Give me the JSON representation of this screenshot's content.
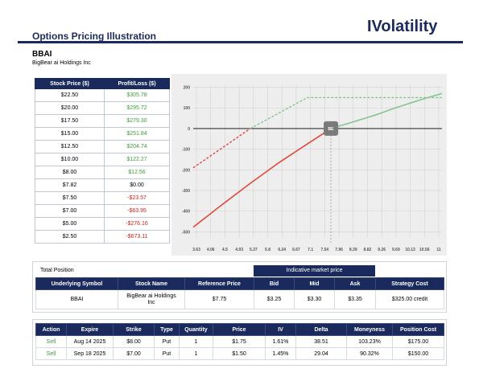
{
  "header": {
    "title": "Options Pricing Illustration",
    "brand": "IVolatility"
  },
  "stock": {
    "ticker": "BBAI",
    "company": "BigBear ai Holdings Inc"
  },
  "pl_table": {
    "headers": [
      "Stock Price ($)",
      "Profit/Loss ($)"
    ],
    "rows": [
      {
        "price": "$22.50",
        "pl": "$305.78",
        "sign": "pos"
      },
      {
        "price": "$20.00",
        "pl": "$295.72",
        "sign": "pos"
      },
      {
        "price": "$17.50",
        "pl": "$279.30",
        "sign": "pos"
      },
      {
        "price": "$15.00",
        "pl": "$251.84",
        "sign": "pos"
      },
      {
        "price": "$12.50",
        "pl": "$204.74",
        "sign": "pos"
      },
      {
        "price": "$10.00",
        "pl": "$122.27",
        "sign": "pos"
      },
      {
        "price": "$8.00",
        "pl": "$12.56",
        "sign": "pos"
      },
      {
        "price": "$7.82",
        "pl": "$0.00",
        "sign": "zero"
      },
      {
        "price": "$7.50",
        "pl": "-$23.57",
        "sign": "neg"
      },
      {
        "price": "$7.00",
        "pl": "-$63.95",
        "sign": "neg"
      },
      {
        "price": "$5.00",
        "pl": "-$276.16",
        "sign": "neg"
      },
      {
        "price": "$2.50",
        "pl": "-$673.11",
        "sign": "neg"
      }
    ]
  },
  "chart_data": {
    "type": "line",
    "x_ticks": [
      "3.63",
      "4.06",
      "4.5",
      "4.93",
      "5.37",
      "5.8",
      "6.24",
      "6.67",
      "7.1",
      "7.54",
      "7.96",
      "8.39",
      "8.82",
      "9.26",
      "9.69",
      "10.13",
      "10.56",
      "11"
    ],
    "y_ticks": [
      200,
      100,
      0,
      -100,
      -200,
      -300,
      -400,
      -500
    ],
    "ylim": [
      -530,
      210
    ],
    "xlim": [
      3.63,
      11.2
    ],
    "breakeven_x": 7.82,
    "breakeven_marker_label": "BE",
    "reference_price_x": 7.75,
    "series": [
      {
        "style": "solid",
        "points": [
          [
            3.63,
            -478
          ],
          [
            4.5,
            -370
          ],
          [
            5.37,
            -265
          ],
          [
            6.24,
            -165
          ],
          [
            7.1,
            -75
          ],
          [
            7.82,
            0
          ]
        ]
      },
      {
        "style": "solid",
        "points": [
          [
            7.82,
            0
          ],
          [
            8.39,
            27
          ],
          [
            8.82,
            48
          ],
          [
            9.26,
            70
          ],
          [
            9.69,
            95
          ],
          [
            10.13,
            118
          ],
          [
            10.56,
            140
          ],
          [
            11.2,
            170
          ]
        ]
      },
      {
        "style": "dashed",
        "points": [
          [
            3.63,
            -190
          ],
          [
            5.37,
            0
          ]
        ]
      },
      {
        "style": "dashed",
        "points": [
          [
            5.37,
            0
          ],
          [
            7.1,
            150
          ],
          [
            11.2,
            150
          ]
        ]
      }
    ],
    "colors": {
      "loss": "#e0493b",
      "profit": "#86c48e",
      "grid": "#d2d2d2",
      "marker": "#7a7a7a",
      "zero_line": "#000000"
    }
  },
  "total_position": {
    "label": "Total Position",
    "imp_header": "Indicative market price",
    "headers": [
      "Underlying Symbol",
      "Stock Name",
      "Reference Price",
      "Bid",
      "Mid",
      "Ask",
      "Strategy Cost"
    ],
    "row": {
      "symbol": "BBAI",
      "name_line1": "BigBear ai Holdings",
      "name_line2": "Inc",
      "ref_price": "$7.75",
      "bid": "$3.25",
      "mid": "$3.30",
      "ask": "$3.35",
      "cost": "$325.00 credit"
    }
  },
  "trades": {
    "headers": [
      "Action",
      "Expire",
      "Strike",
      "Type",
      "Quantity",
      "Price",
      "IV",
      "Delta",
      "Moneyness",
      "Position Cost"
    ],
    "rows": [
      {
        "action": "Sell",
        "expire": "Aug 14 2025",
        "strike": "$8.00",
        "type": "Put",
        "qty": "1",
        "price": "$1.75",
        "iv": "1.61%",
        "delta": "38.51",
        "moneyness": "103.23%",
        "cost": "$175.00"
      },
      {
        "action": "Sell",
        "expire": "Sep 18 2025",
        "strike": "$7.00",
        "type": "Put",
        "qty": "1",
        "price": "$1.50",
        "iv": "1.45%",
        "delta": "29.04",
        "moneyness": "90.32%",
        "cost": "$150.00"
      }
    ]
  }
}
